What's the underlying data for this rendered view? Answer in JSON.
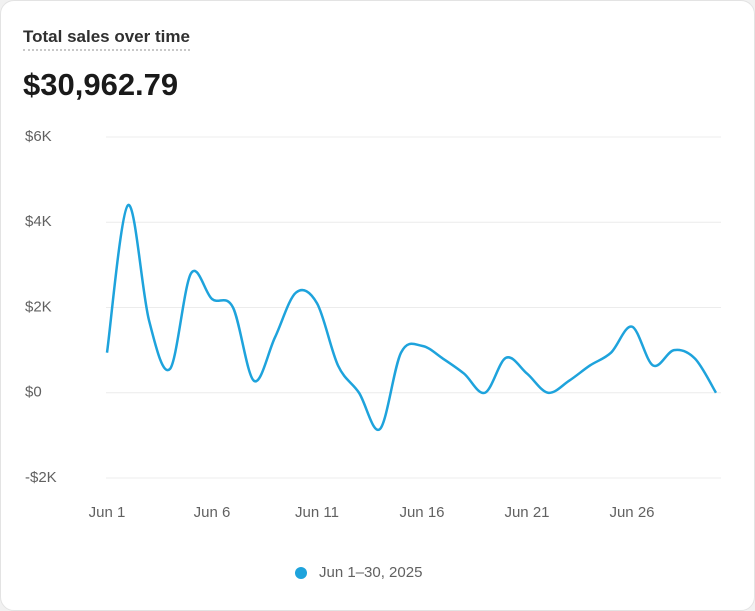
{
  "header": {
    "title": "Total sales over time",
    "total": "$30,962.79"
  },
  "chart_data": {
    "type": "line",
    "categories": [
      "Jun 1",
      null,
      null,
      null,
      null,
      "Jun 6",
      null,
      null,
      null,
      null,
      "Jun 11",
      null,
      null,
      null,
      null,
      "Jun 16",
      null,
      null,
      null,
      null,
      "Jun 21",
      null,
      null,
      null,
      null,
      "Jun 26",
      null,
      null,
      null,
      null
    ],
    "series": [
      {
        "name": "Jun 1–30, 2025",
        "color": "#1ea3dc",
        "values": [
          940,
          4400,
          1700,
          560,
          2800,
          2200,
          2000,
          280,
          1300,
          2350,
          2100,
          640,
          0,
          -850,
          940,
          1100,
          800,
          450,
          0,
          820,
          450,
          0,
          280,
          640,
          940,
          1550,
          640,
          1000,
          800,
          0
        ]
      }
    ],
    "ylim": [
      -2000,
      6000
    ],
    "yticks": [
      {
        "value": -2000,
        "label": "-$2K"
      },
      {
        "value": 0,
        "label": "$0"
      },
      {
        "value": 2000,
        "label": "$2K"
      },
      {
        "value": 4000,
        "label": "$4K"
      },
      {
        "value": 6000,
        "label": "$6K"
      }
    ],
    "grid": true
  }
}
